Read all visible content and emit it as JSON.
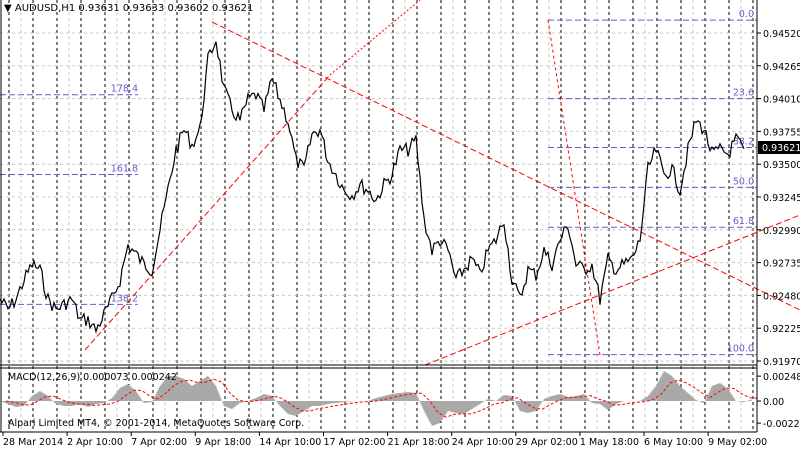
{
  "header": {
    "symbol": "AUDUSD,H1",
    "open": "0.93631",
    "high": "0.93633",
    "low": "0.93602",
    "close": "0.93621"
  },
  "macd": {
    "label": "MACD(12,26,9) 0.000073 0.000242",
    "axis": [
      "0.002487",
      "0.00",
      "-0.002212"
    ],
    "hist": [
      0,
      -0.0003,
      -0.0006,
      -0.0005,
      0.0005,
      0.001,
      0.0005,
      -0.0003,
      -0.0005,
      -0.0005,
      -0.0003,
      -0.0006,
      -0.0003,
      -0.0002,
      0.0003,
      0.0013,
      0.0017,
      0.001,
      -0.0002,
      -0.0001,
      0.0015,
      0.0025,
      0.0025,
      0.0022,
      0.0015,
      0.002,
      0.0025,
      0.0015,
      -0.0005,
      -0.0008,
      -0.0002,
      0,
      0.0003,
      0.0007,
      0.0005,
      -0.0005,
      -0.0013,
      -0.0015,
      -0.001,
      -0.0005,
      -0.0005,
      -0.0003,
      -0.0002,
      -0.0001,
      0,
      0,
      0,
      0.0003,
      0.0005,
      0.0007,
      0.0008,
      0.0009,
      0.0008,
      -0.001,
      -0.0025,
      -0.0022,
      -0.001,
      -0.0012,
      -0.0013,
      -0.0008,
      -0.0003,
      0.0002,
      0,
      0.0006,
      0.0005,
      -0.001,
      -0.0012,
      -0.001,
      0.0002,
      0.0005,
      0.0007,
      0.0004,
      0.0005,
      0.0007,
      -0.0002,
      -0.0003,
      -0.0009,
      -0.0003,
      0,
      0,
      0,
      0.0005,
      0.0015,
      0.003,
      0.0025,
      0.0015,
      0.0008,
      0.0001,
      -0.0002,
      0.0015,
      0.0018,
      0.0012,
      0,
      -0.0001,
      0.0002
    ]
  },
  "copyright": "Alpari Limited MT4, © 2001-2014, MetaQuotes Software Corp.",
  "price_axis": [
    "0.94520",
    "0.94265",
    "0.94010",
    "0.93755",
    "0.93500",
    "0.93245",
    "0.92990",
    "0.92735",
    "0.92480",
    "0.92225",
    "0.91970"
  ],
  "current_price": "0.93621",
  "time_axis": [
    "28 Mar 2014",
    "2 Apr 10:00",
    "7 Apr 02:00",
    "9 Apr 18:00",
    "14 Apr 10:00",
    "17 Apr 02:00",
    "21 Apr 18:00",
    "24 Apr 10:00",
    "29 Apr 02:00",
    "1 May 18:00",
    "6 May 10:00",
    "9 May 02:00"
  ],
  "fibo_right": [
    {
      "label": "0.0",
      "price": 0.9462
    },
    {
      "label": "23.6",
      "price": 0.9401
    },
    {
      "label": "38.2",
      "price": 0.9363
    },
    {
      "label": "50.0",
      "price": 0.9332
    },
    {
      "label": "61.8",
      "price": 0.9301
    },
    {
      "label": "100.0",
      "price": 0.9202
    }
  ],
  "fibo_left": [
    {
      "label": "178.4",
      "price": 0.9404
    },
    {
      "label": "161.8",
      "price": 0.9342
    },
    {
      "label": "138.2",
      "price": 0.9241
    }
  ],
  "colors": {
    "price": "#000000",
    "fibo": "#6a5acd",
    "trend": "#ff0000",
    "macd_hist": "#a9a9a9",
    "signal": "#ff0000"
  },
  "closes": [
    0.9245,
    0.9237,
    0.9245,
    0.926,
    0.9272,
    0.9268,
    0.9245,
    0.9237,
    0.9241,
    0.9245,
    0.9229,
    0.9229,
    0.9221,
    0.9233,
    0.9245,
    0.926,
    0.9287,
    0.928,
    0.9272,
    0.9268,
    0.9299,
    0.933,
    0.9361,
    0.9377,
    0.9365,
    0.9377,
    0.9431,
    0.9447,
    0.9408,
    0.9392,
    0.9384,
    0.94,
    0.9404,
    0.9392,
    0.9416,
    0.94,
    0.9384,
    0.9353,
    0.9346,
    0.9373,
    0.9377,
    0.9353,
    0.9342,
    0.933,
    0.9326,
    0.9334,
    0.933,
    0.9322,
    0.9334,
    0.9342,
    0.9361,
    0.9361,
    0.9369,
    0.9307,
    0.9283,
    0.9291,
    0.9283,
    0.926,
    0.9268,
    0.9276,
    0.9264,
    0.9283,
    0.9291,
    0.9307,
    0.926,
    0.9245,
    0.9268,
    0.9264,
    0.9283,
    0.9272,
    0.9291,
    0.9303,
    0.9272,
    0.9268,
    0.9272,
    0.9245,
    0.9276,
    0.9268,
    0.9272,
    0.9276,
    0.9291,
    0.9346,
    0.9361,
    0.9342,
    0.9346,
    0.933,
    0.9361,
    0.9384,
    0.9377,
    0.9358,
    0.9361,
    0.9358,
    0.9369,
    0.9362
  ]
}
